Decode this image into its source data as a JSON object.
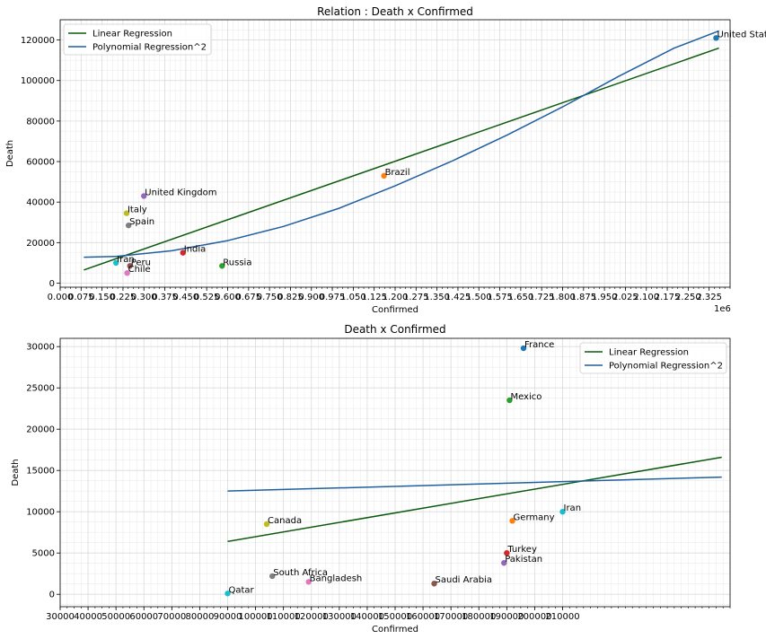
{
  "chart_data": [
    {
      "type": "scatter",
      "title": "Relation : Death x Confirmed",
      "xlabel": "Confirmed",
      "ylabel": "Death",
      "offset_label": "1e6",
      "xlim": [
        0,
        2.4
      ],
      "ylim": [
        -2000,
        130000
      ],
      "grid": "on (major + minor)",
      "legend_position": "top-left",
      "x_ticks": [
        "0.000",
        "0.075",
        "0.150",
        "0.225",
        "0.300",
        "0.375",
        "0.450",
        "0.525",
        "0.600",
        "0.675",
        "0.750",
        "0.825",
        "0.900",
        "0.975",
        "1.050",
        "1.125",
        "1.200",
        "1.275",
        "1.350",
        "1.425",
        "1.500",
        "1.575",
        "1.650",
        "1.725",
        "1.800",
        "1.875",
        "1.950",
        "2.025",
        "2.100",
        "2.175",
        "2.250",
        "2.325"
      ],
      "y_ticks": [
        "0",
        "20000",
        "40000",
        "60000",
        "80000",
        "100000",
        "120000"
      ],
      "points": [
        {
          "label": "United States",
          "x": 2.35,
          "y": 121000,
          "color": "#1f77b4"
        },
        {
          "label": "Brazil",
          "x": 1.16,
          "y": 53000,
          "color": "#ff7f0e"
        },
        {
          "label": "Russia",
          "x": 0.58,
          "y": 8500,
          "color": "#2ca02c"
        },
        {
          "label": "India",
          "x": 0.44,
          "y": 15000,
          "color": "#d62728"
        },
        {
          "label": "United Kingdom",
          "x": 0.3,
          "y": 43000,
          "color": "#9467bd"
        },
        {
          "label": "Peru",
          "x": 0.25,
          "y": 8500,
          "color": "#8c564b"
        },
        {
          "label": "Chile",
          "x": 0.24,
          "y": 5000,
          "color": "#e377c2"
        },
        {
          "label": "Spain",
          "x": 0.245,
          "y": 28500,
          "color": "#7f7f7f"
        },
        {
          "label": "Italy",
          "x": 0.238,
          "y": 34500,
          "color": "#bcbd22"
        },
        {
          "label": "Iran",
          "x": 0.2,
          "y": 10000,
          "color": "#17becf"
        }
      ],
      "series": [
        {
          "name": "Linear Regression",
          "color": "#0b5a0b",
          "x": [
            0.085,
            2.36
          ],
          "y": [
            6500,
            116000
          ]
        },
        {
          "name": "Polynomial Regression^2",
          "color": "#1f5fa0",
          "x": [
            0.085,
            0.2,
            0.4,
            0.6,
            0.8,
            1.0,
            1.2,
            1.4,
            1.6,
            1.8,
            2.0,
            2.2,
            2.36
          ],
          "y": [
            12800,
            13200,
            16000,
            21000,
            28000,
            37000,
            48000,
            60000,
            73000,
            87000,
            102000,
            116000,
            124500
          ]
        }
      ]
    },
    {
      "type": "scatter",
      "title": "Death x Confirmed",
      "xlabel": "Confirmed",
      "ylabel": "Death",
      "xlim": [
        30000,
        270000
      ],
      "ylim": [
        -1500,
        31000
      ],
      "grid": "on (major + minor)",
      "legend_position": "top-right",
      "x_ticks": [
        "30000",
        "40000",
        "50000",
        "60000",
        "70000",
        "80000",
        "90000",
        "100000",
        "110000",
        "120000",
        "130000",
        "140000",
        "150000",
        "160000",
        "170000",
        "180000",
        "190000",
        "200000",
        "210000"
      ],
      "y_ticks": [
        "0",
        "5000",
        "10000",
        "15000",
        "20000",
        "25000",
        "30000"
      ],
      "points": [
        {
          "label": "France",
          "x": 196000,
          "y": 29800,
          "color": "#1f77b4"
        },
        {
          "label": "Germany",
          "x": 192000,
          "y": 8900,
          "color": "#ff7f0e"
        },
        {
          "label": "Mexico",
          "x": 191000,
          "y": 23500,
          "color": "#2ca02c"
        },
        {
          "label": "Turkey",
          "x": 190000,
          "y": 5000,
          "color": "#d62728"
        },
        {
          "label": "Pakistan",
          "x": 189000,
          "y": 3800,
          "color": "#9467bd"
        },
        {
          "label": "Saudi Arabia",
          "x": 164000,
          "y": 1300,
          "color": "#8c564b"
        },
        {
          "label": "Bangladesh",
          "x": 119000,
          "y": 1500,
          "color": "#e377c2"
        },
        {
          "label": "South Africa",
          "x": 106000,
          "y": 2200,
          "color": "#7f7f7f"
        },
        {
          "label": "Canada",
          "x": 104000,
          "y": 8500,
          "color": "#bcbd22"
        },
        {
          "label": "Qatar",
          "x": 90000,
          "y": 100,
          "color": "#17becf"
        },
        {
          "label": "Iran",
          "x": 210000,
          "y": 10000,
          "color": "#17becf"
        }
      ],
      "series": [
        {
          "name": "Linear Regression",
          "color": "#0b5a0b",
          "x": [
            90000,
            267000
          ],
          "y": [
            6400,
            16600
          ]
        },
        {
          "name": "Polynomial Regression^2",
          "color": "#1f5fa0",
          "x": [
            90000,
            267000
          ],
          "y": [
            12500,
            14200
          ]
        }
      ]
    }
  ]
}
